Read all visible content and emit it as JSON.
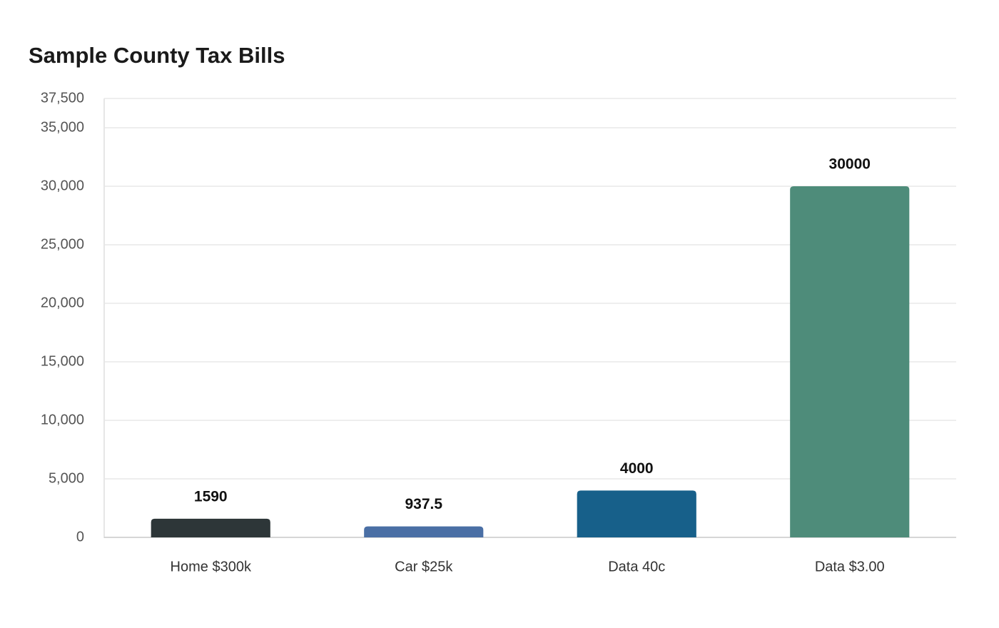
{
  "chart_data": {
    "type": "bar",
    "title": "Sample County Tax Bills",
    "categories": [
      "Home $300k",
      "Car $25k",
      "Data 40c",
      "Data $3.00"
    ],
    "values": [
      1590,
      937.5,
      4000,
      30000
    ],
    "colors": [
      "#2d3638",
      "#4a6fa5",
      "#17608a",
      "#4e8c7a"
    ],
    "ylim": [
      0,
      37500
    ],
    "yticks": [
      0,
      {
        "value": 5000,
        "label": "5,000"
      },
      {
        "value": 10000,
        "label": "10,000"
      },
      {
        "value": 15000,
        "label": "15,000"
      },
      {
        "value": 20000,
        "label": "20,000"
      },
      {
        "value": 25000,
        "label": "25,000"
      },
      {
        "value": 30000,
        "label": "30,000"
      },
      {
        "value": 35000,
        "label": "35,000"
      },
      {
        "value": 37500,
        "label": "37,500"
      }
    ],
    "grid": true
  }
}
